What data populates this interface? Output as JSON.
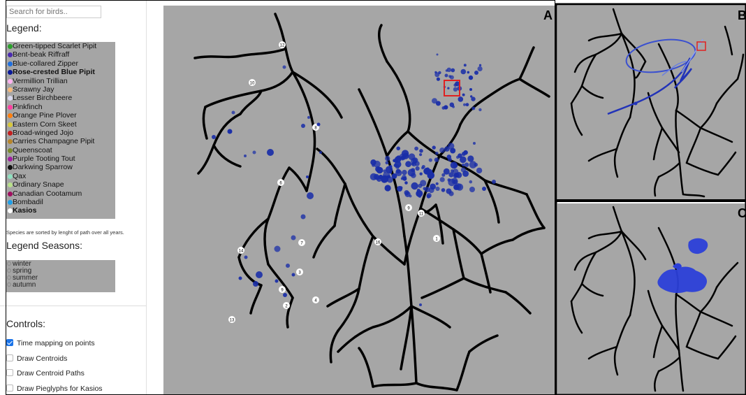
{
  "search": {
    "placeholder": "Search for birds.."
  },
  "legend": {
    "title": "Legend:",
    "items": [
      {
        "label": "Green-tipped Scarlet Pipit",
        "color": "#2ca02c"
      },
      {
        "label": "Bent-beak Riffraff",
        "color": "#4b2bb0"
      },
      {
        "label": "Blue-collared Zipper",
        "color": "#1f6fe0"
      },
      {
        "label": "Rose-crested Blue Pipit",
        "color": "#0a1a9a",
        "bold": true
      },
      {
        "label": "Vermillion Trillian",
        "color": "#ffb3f0"
      },
      {
        "label": "Scrawny Jay",
        "color": "#f4b97a"
      },
      {
        "label": "Lesser Birchbeere",
        "color": "#d9d9f0"
      },
      {
        "label": "Pinkfinch",
        "color": "#ff3fa0"
      },
      {
        "label": "Orange Pine Plover",
        "color": "#ff7f0e"
      },
      {
        "label": "Eastern Corn Skeet",
        "color": "#d8c83a"
      },
      {
        "label": "Broad-winged Jojo",
        "color": "#c42020"
      },
      {
        "label": "Carries Champagne Pipit",
        "color": "#b8862b"
      },
      {
        "label": "Queenscoat",
        "color": "#7a8a2b"
      },
      {
        "label": "Purple Tooting Tout",
        "color": "#a020a0"
      },
      {
        "label": "Darkwing Sparrow",
        "color": "#111111"
      },
      {
        "label": "Qax",
        "color": "#8fe0c0"
      },
      {
        "label": "Ordinary Snape",
        "color": "#b8e08a"
      },
      {
        "label": "Canadian Cootamum",
        "color": "#a01060"
      },
      {
        "label": "Bombadil",
        "color": "#1f9fe8"
      },
      {
        "label": "Kasios",
        "color": "#ffffff",
        "bold": true
      }
    ],
    "note": "Species are sorted by lenght of path over all years."
  },
  "seasons": {
    "title": "Legend Seasons:",
    "items": [
      "winter",
      "spring",
      "summer",
      "autumn"
    ]
  },
  "controls": {
    "title": "Controls:",
    "items": [
      {
        "label": "Time mapping on points",
        "checked": true
      },
      {
        "label": "Draw Centroids",
        "checked": false
      },
      {
        "label": "Draw Centroid Paths",
        "checked": false
      },
      {
        "label": "Draw Pieglyphs for Kasios",
        "checked": false
      }
    ]
  },
  "panels": {
    "a": "A",
    "b": "B",
    "c": "C"
  },
  "map_labels": [
    "12",
    "10",
    "8",
    "6",
    "9",
    "11",
    "1",
    "7",
    "14",
    "3",
    "16",
    "9",
    "2",
    "4",
    "13"
  ],
  "colors": {
    "map_bg": "#a6a6a6",
    "point": "#1a2ea8",
    "highlight": "#e02020",
    "river": "#000000"
  }
}
